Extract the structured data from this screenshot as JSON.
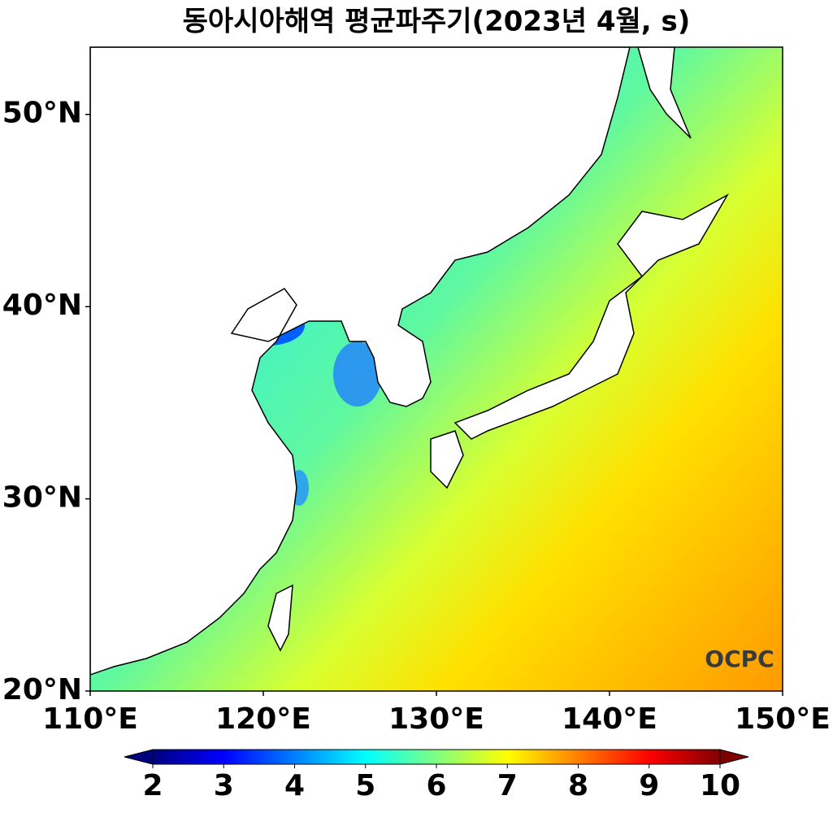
{
  "title": "동아시아해역 평균파주기(2023년 4월, s)",
  "map": {
    "xlim": [
      110,
      150
    ],
    "ylim": [
      20,
      53.5
    ],
    "xticks": [
      {
        "value": 110,
        "label": "110°E"
      },
      {
        "value": 120,
        "label": "120°E"
      },
      {
        "value": 130,
        "label": "130°E"
      },
      {
        "value": 140,
        "label": "140°E"
      },
      {
        "value": 150,
        "label": "150°E"
      }
    ],
    "yticks": [
      {
        "value": 20,
        "label": "20°N"
      },
      {
        "value": 30,
        "label": "30°N"
      },
      {
        "value": 40,
        "label": "40°N"
      },
      {
        "value": 50,
        "label": "50°N"
      }
    ]
  },
  "colorbar": {
    "lim": [
      2,
      10
    ],
    "ticks": [
      2,
      3,
      4,
      5,
      6,
      7,
      8,
      9,
      10
    ],
    "colors": [
      "#00007f",
      "#0000ff",
      "#007fff",
      "#00ffff",
      "#7fff7f",
      "#ffff00",
      "#ff7f00",
      "#ff0000",
      "#7f0000"
    ]
  },
  "logo": "OCPC"
}
